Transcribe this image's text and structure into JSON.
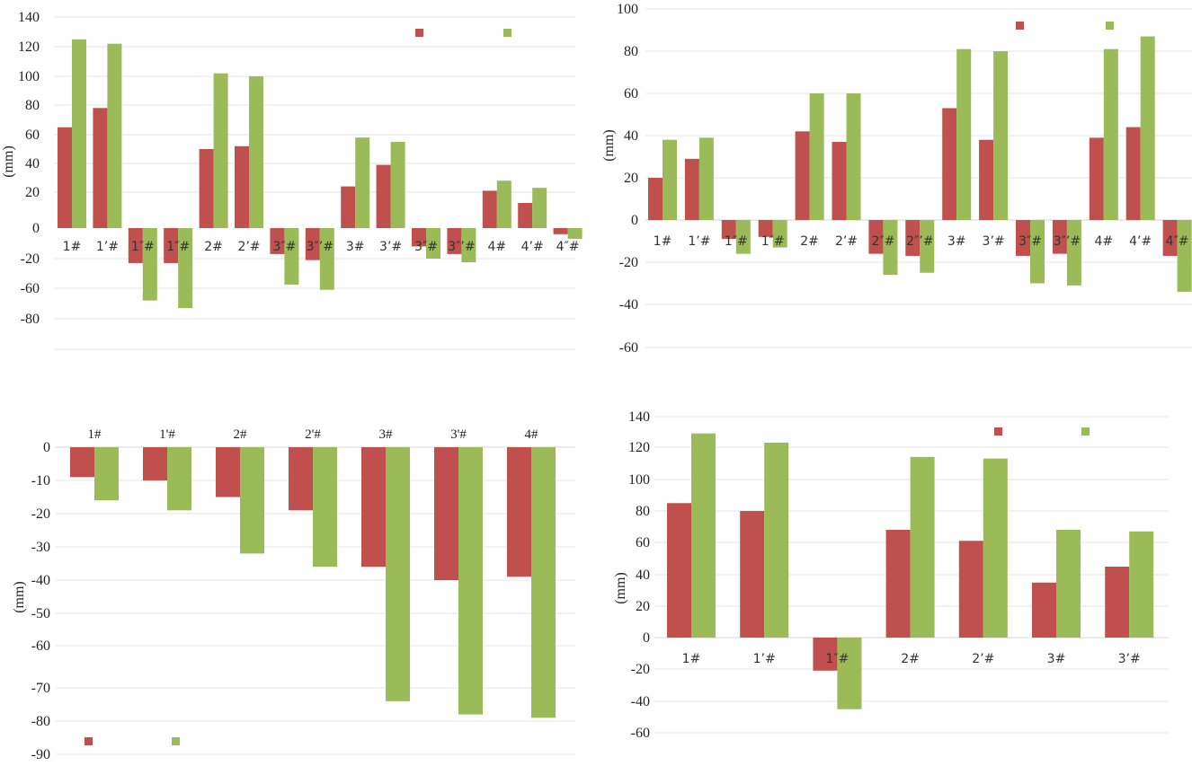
{
  "colors": {
    "red": "#c0504d",
    "green": "#9bbb59",
    "grid": "#e6e6e6"
  },
  "chart_data": [
    {
      "type": "bar",
      "ylabel": "(mm)",
      "legend": "top-right",
      "yticks": [
        140,
        120,
        100,
        80,
        60,
        40,
        20,
        0,
        -20,
        -60,
        -80
      ],
      "categories": [
        "1#",
        "1’#",
        "1″#",
        "1″#",
        "2#",
        "2’#",
        "3″#",
        "3″’#",
        "3#",
        "3’#",
        "3″#",
        "3″’#",
        "4#",
        "4’#",
        "4″#"
      ],
      "series": [
        {
          "color": "red",
          "values": [
            65,
            78,
            -26,
            -26,
            50,
            52,
            -17,
            -22,
            24,
            39,
            -12,
            -17,
            21,
            14,
            -4
          ]
        },
        {
          "color": "green",
          "values": [
            125,
            122,
            -68,
            -73,
            102,
            100,
            -55,
            -61,
            58,
            55,
            -20,
            -25,
            28,
            23,
            -7
          ]
        }
      ]
    },
    {
      "type": "bar",
      "ylabel": "(mm)",
      "legend": "top-right",
      "yticks": [
        100,
        80,
        60,
        40,
        20,
        0,
        -20,
        -40,
        -60
      ],
      "categories": [
        "1#",
        "1’#",
        "1″#",
        "1″#",
        "2#",
        "2’#",
        "2″#",
        "2″’#",
        "3#",
        "3’#",
        "3″#",
        "3″’#",
        "4#",
        "4’#",
        "4″#"
      ],
      "series": [
        {
          "color": "red",
          "values": [
            20,
            29,
            -9,
            -8,
            42,
            37,
            -16,
            -17,
            53,
            38,
            -17,
            -16,
            39,
            44,
            -17
          ]
        },
        {
          "color": "green",
          "values": [
            38,
            39,
            -16,
            -13,
            60,
            60,
            -26,
            -25,
            81,
            80,
            -30,
            -31,
            81,
            87,
            -34
          ]
        }
      ]
    },
    {
      "type": "bar",
      "ylabel": "(mm)",
      "legend": "bottom-left",
      "yticks": [
        0,
        -10,
        -20,
        -30,
        -40,
        -50,
        -60,
        -70,
        -80,
        -90
      ],
      "categories": [
        "1#",
        "1'#",
        "2#",
        "2'#",
        "3#",
        "3'#",
        "4#"
      ],
      "series": [
        {
          "color": "red",
          "values": [
            -9,
            -10,
            -15,
            -19,
            -36,
            -40,
            -39
          ]
        },
        {
          "color": "green",
          "values": [
            -16,
            -19,
            -32,
            -36,
            -74,
            -78,
            -79
          ]
        }
      ]
    },
    {
      "type": "bar",
      "ylabel": "(mm)",
      "legend": "top-right",
      "yticks": [
        140,
        120,
        100,
        80,
        60,
        40,
        20,
        0,
        -20,
        -40,
        -60
      ],
      "categories": [
        "1#",
        "1’#",
        "1″#",
        "2#",
        "2’#",
        "3#",
        "3’#"
      ],
      "series": [
        {
          "color": "red",
          "values": [
            85,
            80,
            -21,
            68,
            61,
            35,
            45
          ]
        },
        {
          "color": "green",
          "values": [
            129,
            123,
            -45,
            114,
            113,
            68,
            67
          ]
        }
      ]
    }
  ]
}
